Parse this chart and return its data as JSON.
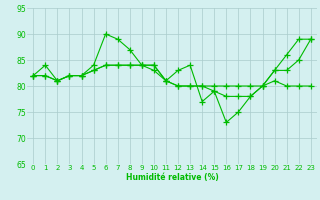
{
  "xlabel": "Humidité relative (%)",
  "background_color": "#d4f0f0",
  "grid_color": "#aacccc",
  "line_color": "#00bb00",
  "xlim": [
    -0.5,
    23.5
  ],
  "ylim": [
    65,
    95
  ],
  "yticks": [
    65,
    70,
    75,
    80,
    85,
    90,
    95
  ],
  "xticks": [
    0,
    1,
    2,
    3,
    4,
    5,
    6,
    7,
    8,
    9,
    10,
    11,
    12,
    13,
    14,
    15,
    16,
    17,
    18,
    19,
    20,
    21,
    22,
    23
  ],
  "series": [
    [
      82,
      84,
      81,
      82,
      82,
      84,
      90,
      89,
      87,
      84,
      84,
      81,
      83,
      84,
      77,
      79,
      73,
      75,
      78,
      80,
      83,
      86,
      89,
      89
    ],
    [
      82,
      82,
      81,
      82,
      82,
      83,
      84,
      84,
      84,
      84,
      84,
      81,
      80,
      80,
      80,
      80,
      80,
      80,
      80,
      80,
      81,
      80,
      80,
      80
    ],
    [
      82,
      82,
      81,
      82,
      82,
      83,
      84,
      84,
      84,
      84,
      83,
      81,
      80,
      80,
      80,
      79,
      78,
      78,
      78,
      80,
      83,
      83,
      85,
      89
    ]
  ]
}
